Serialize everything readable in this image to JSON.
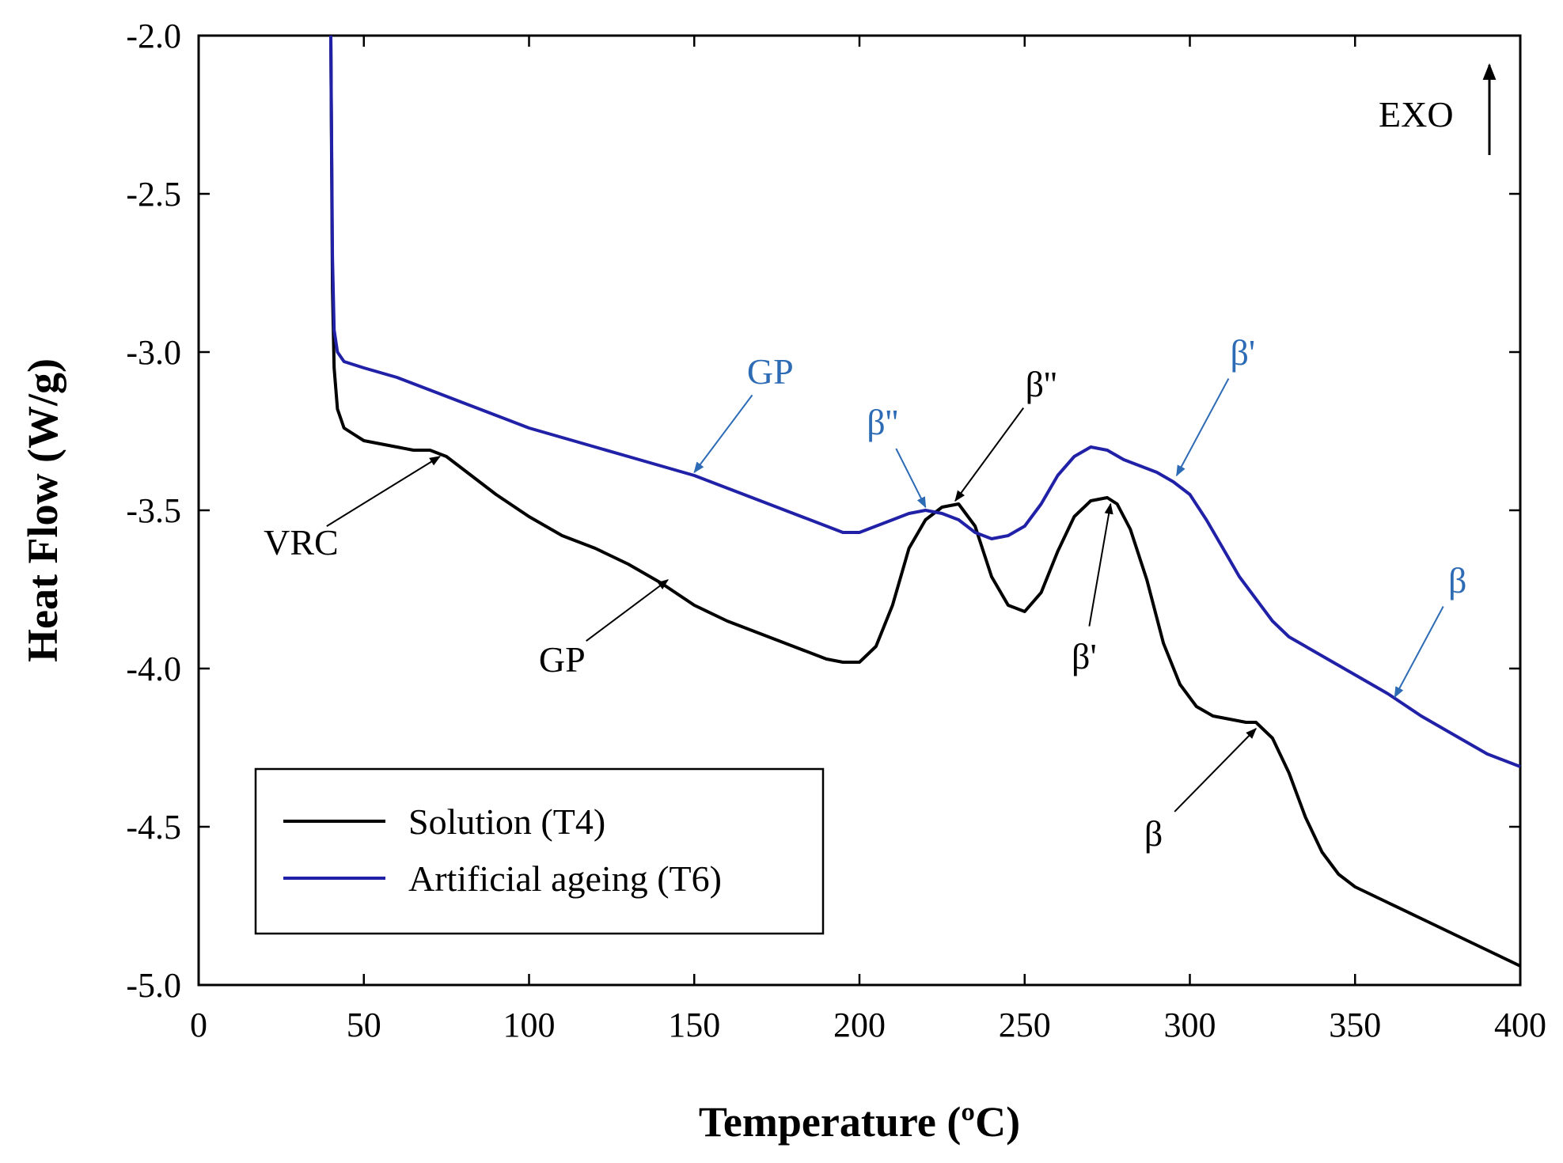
{
  "chart_data": {
    "type": "line",
    "xlabel": "Temperature (ºC)",
    "ylabel": "Heat Flow (W/g)",
    "xlim": [
      0,
      400
    ],
    "ylim": [
      -5.0,
      -2.0
    ],
    "xticks": [
      0,
      50,
      100,
      150,
      200,
      250,
      300,
      350,
      400
    ],
    "yticks": [
      -2.0,
      -2.5,
      -3.0,
      -3.5,
      -4.0,
      -4.5,
      -5.0
    ],
    "xtick_labels": [
      "0",
      "50",
      "100",
      "150",
      "200",
      "250",
      "300",
      "350",
      "400"
    ],
    "ytick_labels": [
      "-2.0",
      "-2.5",
      "-3.0",
      "-3.5",
      "-4.0",
      "-4.5",
      "-5.0"
    ],
    "grid": false,
    "legend_position": "bottom-left",
    "exo_label": "EXO",
    "series": [
      {
        "name": "Solution (T4)",
        "color": "#000000",
        "x": [
          40,
          40.5,
          41,
          42,
          44,
          47,
          50,
          55,
          60,
          65,
          70,
          75,
          80,
          90,
          100,
          110,
          120,
          130,
          140,
          150,
          160,
          170,
          180,
          190,
          195,
          200,
          205,
          210,
          215,
          220,
          225,
          230,
          235,
          240,
          245,
          250,
          255,
          260,
          265,
          270,
          275,
          278,
          282,
          287,
          292,
          297,
          302,
          307,
          312,
          317,
          320,
          325,
          330,
          335,
          340,
          345,
          350,
          360,
          370,
          380,
          390,
          400
        ],
        "y": [
          -2.0,
          -2.8,
          -3.05,
          -3.18,
          -3.24,
          -3.26,
          -3.28,
          -3.29,
          -3.3,
          -3.31,
          -3.31,
          -3.33,
          -3.37,
          -3.45,
          -3.52,
          -3.58,
          -3.62,
          -3.67,
          -3.73,
          -3.8,
          -3.85,
          -3.89,
          -3.93,
          -3.97,
          -3.98,
          -3.98,
          -3.93,
          -3.8,
          -3.62,
          -3.53,
          -3.49,
          -3.48,
          -3.55,
          -3.71,
          -3.8,
          -3.82,
          -3.76,
          -3.63,
          -3.52,
          -3.47,
          -3.46,
          -3.48,
          -3.56,
          -3.72,
          -3.92,
          -4.05,
          -4.12,
          -4.15,
          -4.16,
          -4.17,
          -4.17,
          -4.22,
          -4.33,
          -4.47,
          -4.58,
          -4.65,
          -4.69,
          -4.74,
          -4.79,
          -4.84,
          -4.89,
          -4.94
        ]
      },
      {
        "name": "Artificial ageing (T6)",
        "color": "#2121a8",
        "x": [
          40,
          40.5,
          41,
          42,
          44,
          47,
          50,
          60,
          70,
          80,
          90,
          100,
          110,
          120,
          130,
          140,
          150,
          160,
          170,
          180,
          190,
          195,
          200,
          205,
          210,
          215,
          220,
          225,
          230,
          235,
          240,
          245,
          250,
          255,
          260,
          265,
          270,
          275,
          280,
          285,
          290,
          295,
          300,
          305,
          310,
          315,
          320,
          325,
          330,
          340,
          350,
          360,
          370,
          380,
          390,
          400
        ],
        "y": [
          -2.0,
          -2.7,
          -2.93,
          -3.0,
          -3.03,
          -3.04,
          -3.05,
          -3.08,
          -3.12,
          -3.16,
          -3.2,
          -3.24,
          -3.27,
          -3.3,
          -3.33,
          -3.36,
          -3.39,
          -3.43,
          -3.47,
          -3.51,
          -3.55,
          -3.57,
          -3.57,
          -3.55,
          -3.53,
          -3.51,
          -3.5,
          -3.51,
          -3.53,
          -3.57,
          -3.59,
          -3.58,
          -3.55,
          -3.48,
          -3.39,
          -3.33,
          -3.3,
          -3.31,
          -3.34,
          -3.36,
          -3.38,
          -3.41,
          -3.45,
          -3.53,
          -3.62,
          -3.71,
          -3.78,
          -3.85,
          -3.9,
          -3.96,
          -4.02,
          -4.08,
          -4.15,
          -4.21,
          -4.27,
          -4.31
        ]
      }
    ],
    "annotations": [
      {
        "text": "GP",
        "series": "Artificial ageing (T6)",
        "color": "#2d6bb5",
        "text_x": 173,
        "text_y": -3.1,
        "arrow_to_x": 150,
        "arrow_to_y": -3.38
      },
      {
        "text": "β''",
        "series": "Artificial ageing (T6)",
        "color": "#2d6bb5",
        "text_x": 207,
        "text_y": -3.26,
        "arrow_to_x": 220,
        "arrow_to_y": -3.49
      },
      {
        "text": "β'",
        "series": "Artificial ageing (T6)",
        "color": "#2d6bb5",
        "text_x": 316,
        "text_y": -3.04,
        "arrow_to_x": 296,
        "arrow_to_y": -3.39
      },
      {
        "text": "β",
        "series": "Artificial ageing (T6)",
        "color": "#2d6bb5",
        "text_x": 381,
        "text_y": -3.76,
        "arrow_to_x": 362,
        "arrow_to_y": -4.09
      },
      {
        "text": "VRC",
        "series": "Solution (T4)",
        "color": "#000000",
        "text_x": 31,
        "text_y": -3.64,
        "arrow_to_x": 73,
        "arrow_to_y": -3.33
      },
      {
        "text": "β''",
        "series": "Solution (T4)",
        "color": "#000000",
        "text_x": 255,
        "text_y": -3.14,
        "arrow_to_x": 229,
        "arrow_to_y": -3.47
      },
      {
        "text": "GP",
        "series": "Solution (T4)",
        "color": "#000000",
        "text_x": 110,
        "text_y": -4.01,
        "arrow_to_x": 142,
        "arrow_to_y": -3.72
      },
      {
        "text": "β'",
        "series": "Solution (T4)",
        "color": "#000000",
        "text_x": 268,
        "text_y": -4.0,
        "arrow_to_x": 276,
        "arrow_to_y": -3.48
      },
      {
        "text": "β",
        "series": "Solution (T4)",
        "color": "#000000",
        "text_x": 289,
        "text_y": -4.56,
        "arrow_to_x": 320,
        "arrow_to_y": -4.19
      }
    ]
  }
}
